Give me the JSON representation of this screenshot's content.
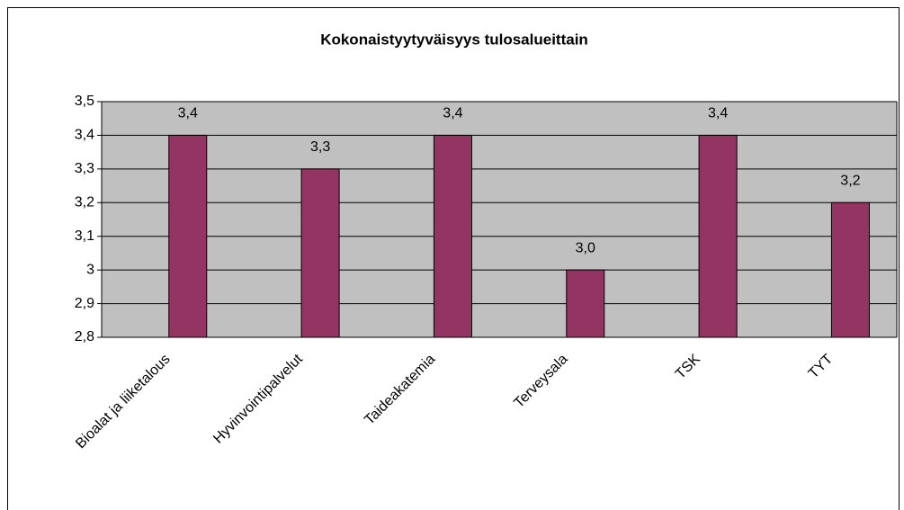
{
  "chart_data": {
    "type": "bar",
    "title": "Kokonaistyytyväisyys tulosalueittain",
    "categories": [
      "Bioalat ja liiketalous",
      "Hyvinvointipalvelut",
      "Taideakatemia",
      "Terveysala",
      "TSK",
      "TYT"
    ],
    "values": [
      3.4,
      3.3,
      3.4,
      3.0,
      3.4,
      3.2
    ],
    "value_labels": [
      "3,4",
      "3,3",
      "3,4",
      "3,0",
      "3,4",
      "3,2"
    ],
    "color": "#943462",
    "ylim": [
      2.8,
      3.5
    ],
    "yticks": [
      {
        "value": 2.8,
        "label": "2,8"
      },
      {
        "value": 2.9,
        "label": "2,9"
      },
      3,
      {
        "value": 3.1,
        "label": "3,1"
      },
      {
        "value": 3.2,
        "label": "3,2"
      },
      {
        "value": 3.3,
        "label": "3,3"
      },
      {
        "value": 3.4,
        "label": "3,4"
      },
      {
        "value": 3.5,
        "label": "3,5"
      }
    ],
    "grid": true
  }
}
